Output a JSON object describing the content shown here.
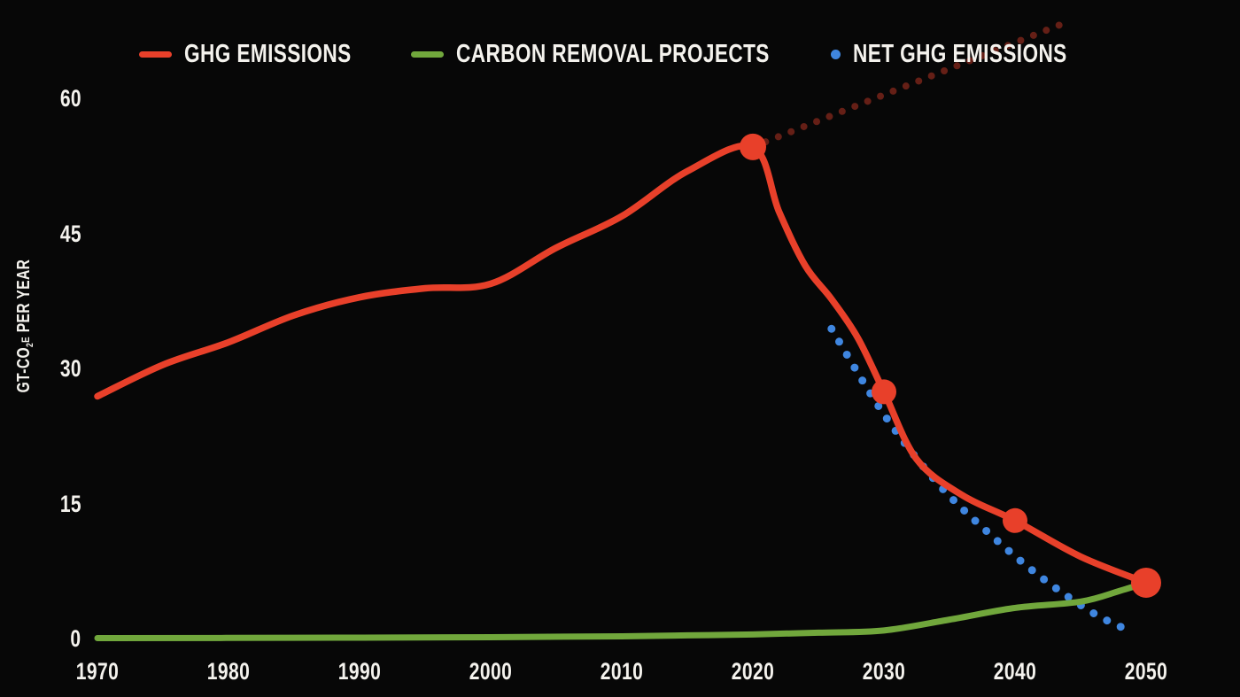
{
  "legend": {
    "items": [
      {
        "label": "GHG EMISSIONS",
        "swatch": "line",
        "color": "#e8402a"
      },
      {
        "label": "CARBON REMOVAL PROJECTS",
        "swatch": "line",
        "color": "#71a73c"
      },
      {
        "label": "NET GHG EMISSIONS",
        "swatch": "dot",
        "color": "#3f86e0"
      }
    ]
  },
  "axes": {
    "y_title": {
      "pre": "GT-CO",
      "sub": "2",
      "small": "E",
      "rest": " PER YEAR"
    },
    "y_ticks": [
      0,
      15,
      30,
      45,
      60
    ],
    "x_ticks": [
      1970,
      1980,
      1990,
      2000,
      2010,
      2020,
      2030,
      2040,
      2050
    ]
  },
  "colors": {
    "background": "#070707",
    "text": "#f4f2ed",
    "ghg_red": "#e8402a",
    "removal_green": "#71a73c",
    "net_blue": "#3f86e0"
  },
  "chart_data": {
    "type": "line",
    "title": "",
    "xlabel": "",
    "ylabel": "GT-CO2e PER YEAR",
    "xlim": [
      1970,
      2050
    ],
    "ylim": [
      0,
      60
    ],
    "grid": false,
    "legend_position": "top",
    "background": "#070707",
    "series": [
      {
        "name": "GHG Emissions",
        "color": "#e8402a",
        "style": "solid",
        "width": 7.5,
        "points": [
          [
            1970,
            27
          ],
          [
            1975,
            30.5
          ],
          [
            1980,
            33
          ],
          [
            1985,
            36
          ],
          [
            1990,
            38
          ],
          [
            1995,
            39
          ],
          [
            2000,
            39.5
          ],
          [
            2005,
            43.5
          ],
          [
            2010,
            47
          ],
          [
            2015,
            52
          ],
          [
            2020,
            54.7
          ],
          [
            2022,
            47.5
          ],
          [
            2024,
            41.5
          ],
          [
            2026,
            37.8
          ],
          [
            2028,
            33.5
          ],
          [
            2030,
            27.5
          ],
          [
            2032.5,
            20
          ],
          [
            2036,
            16
          ],
          [
            2040,
            13.2
          ],
          [
            2045,
            9.2
          ],
          [
            2050,
            6.3
          ]
        ],
        "markers": [
          [
            2020,
            54.7,
            15
          ],
          [
            2030,
            27.5,
            14
          ],
          [
            2040,
            13.2,
            14
          ],
          [
            2050,
            6.3,
            17
          ]
        ]
      },
      {
        "name": "Carbon Removal Projects",
        "color": "#71a73c",
        "style": "solid",
        "width": 7,
        "points": [
          [
            1970,
            0.15
          ],
          [
            1985,
            0.18
          ],
          [
            2000,
            0.25
          ],
          [
            2010,
            0.35
          ],
          [
            2015,
            0.45
          ],
          [
            2020,
            0.55
          ],
          [
            2025,
            0.75
          ],
          [
            2030,
            1.0
          ],
          [
            2035,
            2.2
          ],
          [
            2040,
            3.5
          ],
          [
            2045,
            4.2
          ],
          [
            2048,
            5.4
          ],
          [
            2050,
            6.3
          ]
        ]
      },
      {
        "name": "Net GHG Emissions",
        "color": "#3f86e0",
        "style": "dotted",
        "width": 9,
        "dot_gap": 17,
        "points": [
          [
            2026,
            34.5
          ],
          [
            2030,
            25
          ],
          [
            2034,
            17.5
          ],
          [
            2038,
            11.8
          ],
          [
            2042,
            6.9
          ],
          [
            2046,
            2.9
          ],
          [
            2049,
            0.8
          ]
        ]
      },
      {
        "name": "GHG Emissions Projection",
        "color": "#e8402a",
        "style": "dotted",
        "width": 8,
        "dot_gap": 15.5,
        "opacity": 0.42,
        "points": [
          [
            2020,
            54.7
          ],
          [
            2043.5,
            68.3
          ]
        ]
      }
    ]
  }
}
